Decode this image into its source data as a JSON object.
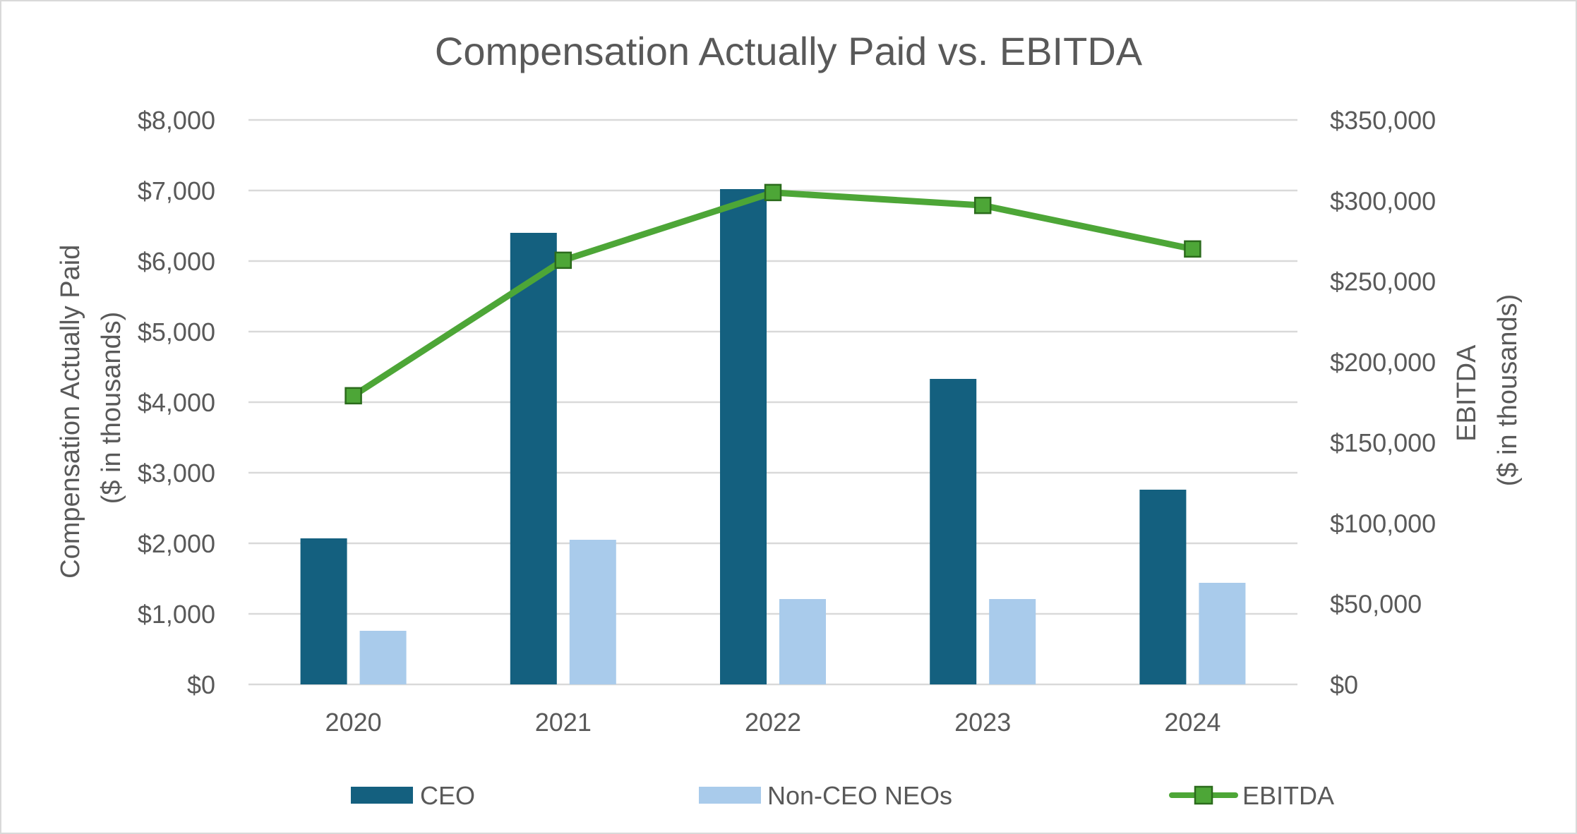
{
  "chart_data": {
    "type": "bar",
    "title": "Compensation Actually Paid vs. EBITDA",
    "categories": [
      "2020",
      "2021",
      "2022",
      "2023",
      "2024"
    ],
    "series": [
      {
        "name": "CEO",
        "type": "bar",
        "axis": "left",
        "color": "#14607f",
        "values": [
          2070,
          6400,
          7020,
          4330,
          2760
        ]
      },
      {
        "name": "Non-CEO NEOs",
        "type": "bar",
        "axis": "left",
        "color": "#a9cbeb",
        "values": [
          760,
          2050,
          1210,
          1210,
          1440
        ]
      },
      {
        "name": "EBITDA",
        "type": "line",
        "axis": "right",
        "color": "#4da637",
        "marker": "square",
        "values": [
          179000,
          263000,
          305000,
          297000,
          270000
        ]
      }
    ],
    "y_left": {
      "label_line1": "Compensation Actually Paid",
      "label_line2": "($ in thousands)",
      "ylim": [
        0,
        8000
      ],
      "ticks": [
        0,
        1000,
        2000,
        3000,
        4000,
        5000,
        6000,
        7000,
        8000
      ],
      "tick_labels": [
        "$0",
        "$1,000",
        "$2,000",
        "$3,000",
        "$4,000",
        "$5,000",
        "$6,000",
        "$7,000",
        "$8,000"
      ]
    },
    "y_right": {
      "label_line1": "EBITDA",
      "label_line2": "($ in thousands)",
      "ylim": [
        0,
        350000
      ],
      "ticks": [
        0,
        50000,
        100000,
        150000,
        200000,
        250000,
        300000,
        350000
      ],
      "tick_labels": [
        "$0",
        "$50,000",
        "$100,000",
        "$150,000",
        "$200,000",
        "$250,000",
        "$300,000",
        "$350,000"
      ]
    },
    "gridlines": true,
    "legend_position": "bottom"
  }
}
